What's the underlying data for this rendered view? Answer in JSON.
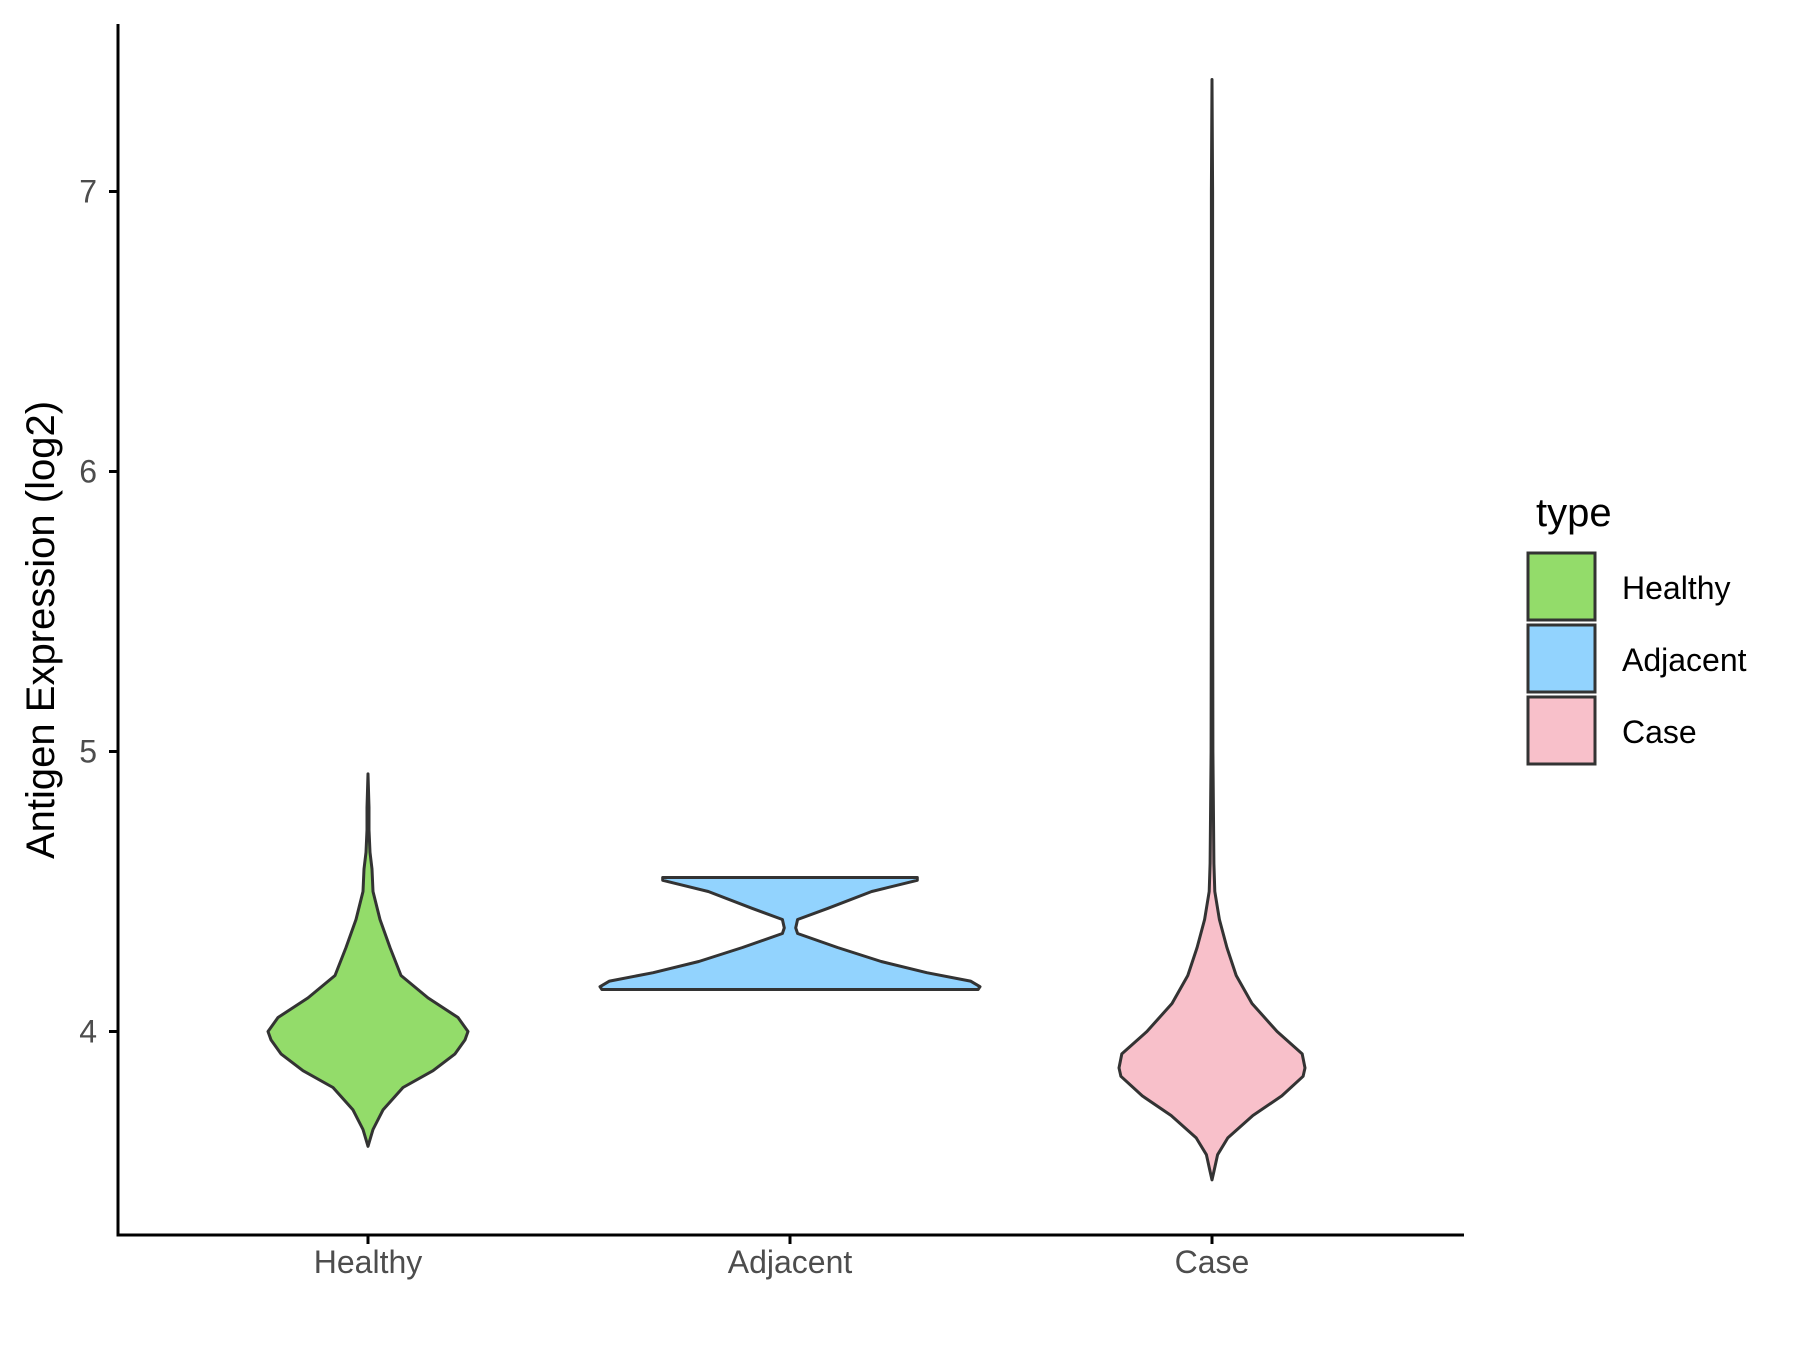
{
  "chart_data": {
    "type": "violin",
    "categories": [
      "Healthy",
      "Adjacent",
      "Case"
    ],
    "ylabel": "Antigen Expression (log2)",
    "xlabel": "",
    "ylim": [
      3.32,
      7.6
    ],
    "yticks": [
      4,
      5,
      6,
      7
    ],
    "ytick_labels": [
      "4",
      "5",
      "6",
      "7"
    ],
    "grid": false,
    "legend": {
      "title": "type",
      "position": "right",
      "entries": [
        "Healthy",
        "Adjacent",
        "Case"
      ]
    },
    "colors": {
      "Healthy": "#93dc6a",
      "Adjacent": "#92d3fe",
      "Case": "#f8c0ca",
      "outline": "#333333",
      "axis": "#000000"
    },
    "series": [
      {
        "category": "Healthy",
        "min": 3.59,
        "max": 4.92,
        "density": [
          [
            3.59,
            0.0
          ],
          [
            3.65,
            0.05
          ],
          [
            3.72,
            0.15
          ],
          [
            3.8,
            0.35
          ],
          [
            3.86,
            0.65
          ],
          [
            3.92,
            0.87
          ],
          [
            3.97,
            0.97
          ],
          [
            4.0,
            1.0
          ],
          [
            4.05,
            0.9
          ],
          [
            4.12,
            0.6
          ],
          [
            4.2,
            0.33
          ],
          [
            4.3,
            0.22
          ],
          [
            4.4,
            0.12
          ],
          [
            4.5,
            0.05
          ],
          [
            4.58,
            0.04
          ],
          [
            4.64,
            0.02
          ],
          [
            4.72,
            0.01
          ],
          [
            4.8,
            0.01
          ],
          [
            4.92,
            0.0
          ]
        ]
      },
      {
        "category": "Adjacent",
        "min": 4.15,
        "max": 4.55,
        "density": [
          [
            4.15,
            0.99
          ],
          [
            4.16,
            1.0
          ],
          [
            4.18,
            0.95
          ],
          [
            4.21,
            0.72
          ],
          [
            4.25,
            0.48
          ],
          [
            4.3,
            0.25
          ],
          [
            4.35,
            0.04
          ],
          [
            4.37,
            0.03
          ],
          [
            4.4,
            0.04
          ],
          [
            4.44,
            0.2
          ],
          [
            4.5,
            0.43
          ],
          [
            4.54,
            0.67
          ],
          [
            4.55,
            0.67
          ]
        ]
      },
      {
        "category": "Case",
        "min": 3.47,
        "max": 7.4,
        "density": [
          [
            3.47,
            0.0
          ],
          [
            3.5,
            0.02
          ],
          [
            3.56,
            0.06
          ],
          [
            3.62,
            0.17
          ],
          [
            3.7,
            0.44
          ],
          [
            3.77,
            0.75
          ],
          [
            3.84,
            0.98
          ],
          [
            3.87,
            1.0
          ],
          [
            3.92,
            0.97
          ],
          [
            4.0,
            0.7
          ],
          [
            4.1,
            0.43
          ],
          [
            4.2,
            0.26
          ],
          [
            4.3,
            0.16
          ],
          [
            4.4,
            0.08
          ],
          [
            4.5,
            0.03
          ],
          [
            4.6,
            0.02
          ],
          [
            4.8,
            0.015
          ],
          [
            5.0,
            0.01
          ],
          [
            5.5,
            0.008
          ],
          [
            6.0,
            0.006
          ],
          [
            7.0,
            0.006
          ],
          [
            7.4,
            0.0
          ]
        ]
      }
    ]
  }
}
